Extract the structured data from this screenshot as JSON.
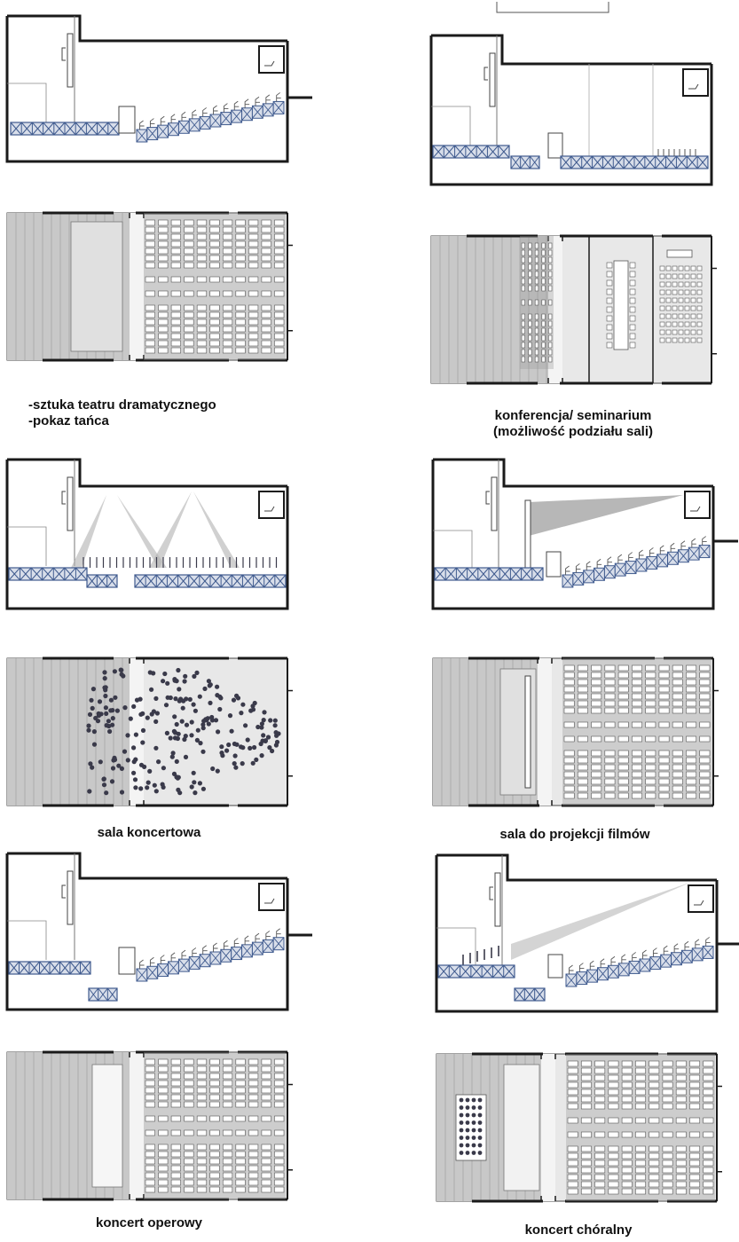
{
  "colors": {
    "wall": "#1a1a1a",
    "truss_fill": "#d8deea",
    "truss_stroke": "#3f5a8e",
    "floor_light": "#e8e8e8",
    "floor_mid": "#c8c8c8",
    "floor_dark": "#9a9a9a",
    "seat": "#555555",
    "people": "#3a3a4a",
    "light_cone": "#b0b0b0"
  },
  "scenarios": [
    {
      "id": "drama",
      "caption_lines": [
        "-sztuka teatru dramatycznego",
        "-pokaz tańca"
      ],
      "section": "raked-seating",
      "plan": "rows-seating"
    },
    {
      "id": "conference",
      "caption_lines": [
        "konferencja/ seminarium",
        "(możliwość podziału sali)"
      ],
      "section": "flat-divided",
      "plan": "conference-plan"
    },
    {
      "id": "concert-hall",
      "caption_lines": [
        "sala koncertowa"
      ],
      "section": "flat-standing-lights",
      "plan": "crowd-plan"
    },
    {
      "id": "cinema",
      "caption_lines": [
        "sala do projekcji filmów"
      ],
      "section": "raked-projection",
      "plan": "rows-seating-screen"
    },
    {
      "id": "opera",
      "caption_lines": [
        "koncert operowy"
      ],
      "section": "raked-orchestra-pit",
      "plan": "rows-seating-pit"
    },
    {
      "id": "choral",
      "caption_lines": [
        "koncert chóralny"
      ],
      "section": "raked-choir-projection",
      "plan": "rows-seating-choir"
    }
  ]
}
